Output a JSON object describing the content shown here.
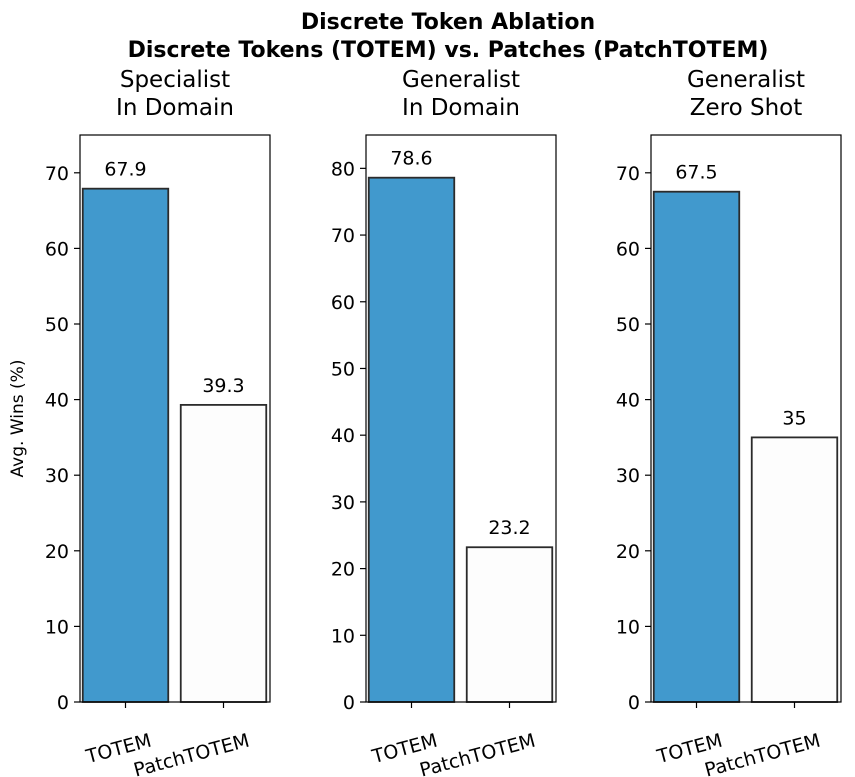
{
  "figure": {
    "title_line1": "Discrete Token Ablation",
    "title_line2": "Discrete Tokens (TOTEM) vs. Patches (PatchTOTEM)"
  },
  "colors": {
    "totem": "#4199cd",
    "patchtotem": "#fdfdfd",
    "edge": "#2b2b2b"
  },
  "chart_data": [
    {
      "type": "bar",
      "title_line1": "Specialist",
      "title_line2": "In Domain",
      "categories": [
        "TOTEM",
        "PatchTOTEM"
      ],
      "values": [
        67.9,
        39.3
      ],
      "value_labels": [
        "67.9",
        "39.3"
      ],
      "ylabel": "Avg. Wins (%)",
      "ylim": [
        0,
        75
      ],
      "yticks": [
        0,
        10,
        20,
        30,
        40,
        50,
        60,
        70
      ],
      "grid": false
    },
    {
      "type": "bar",
      "title_line1": "Generalist",
      "title_line2": "In Domain",
      "categories": [
        "TOTEM",
        "PatchTOTEM"
      ],
      "values": [
        78.6,
        23.2
      ],
      "value_labels": [
        "78.6",
        "23.2"
      ],
      "ylabel": "",
      "ylim": [
        0,
        85
      ],
      "yticks": [
        0,
        10,
        20,
        30,
        40,
        50,
        60,
        70,
        80
      ],
      "grid": false
    },
    {
      "type": "bar",
      "title_line1": "Generalist",
      "title_line2": "Zero Shot",
      "categories": [
        "TOTEM",
        "PatchTOTEM"
      ],
      "values": [
        67.5,
        35
      ],
      "value_labels": [
        "67.5",
        "35"
      ],
      "ylabel": "",
      "ylim": [
        0,
        75
      ],
      "yticks": [
        0,
        10,
        20,
        30,
        40,
        50,
        60,
        70
      ],
      "grid": false
    }
  ]
}
